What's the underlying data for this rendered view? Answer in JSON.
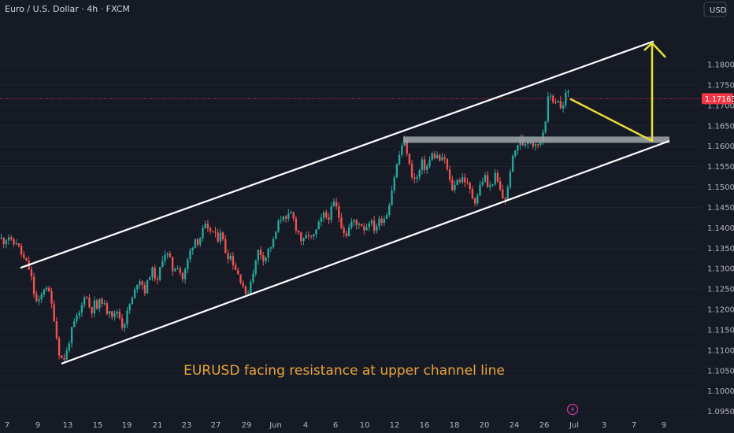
{
  "header": {
    "symbol": "Euro / U.S. Dollar · 4h · FXCM"
  },
  "currency_button": "USD",
  "annotation": "EURUSD facing resistance at upper channel line",
  "colors": {
    "background": "#161a25",
    "up": "#26a69a",
    "down": "#ef5350",
    "channel": "#ffffff",
    "projection": "#e6df3a",
    "zone": "#9aa0a6",
    "current_price": "#f23645",
    "annotation": "#e8a33a"
  },
  "icons": {
    "bolt": "lightning-bolt-icon"
  },
  "chart_data": {
    "type": "candlestick",
    "current_price": 1.17163,
    "current_price_label": "1.17163",
    "ylim": [
      1.0925,
      1.1925
    ],
    "y_ticks": [
      {
        "v": 1.18,
        "label": "1.18000"
      },
      {
        "v": 1.175,
        "label": "1.17500"
      },
      {
        "v": 1.17,
        "label": "1.17000"
      },
      {
        "v": 1.165,
        "label": "1.16500"
      },
      {
        "v": 1.16,
        "label": "1.16000"
      },
      {
        "v": 1.155,
        "label": "1.15500"
      },
      {
        "v": 1.15,
        "label": "1.15000"
      },
      {
        "v": 1.145,
        "label": "1.14500"
      },
      {
        "v": 1.14,
        "label": "1.14000"
      },
      {
        "v": 1.135,
        "label": "1.13500"
      },
      {
        "v": 1.13,
        "label": "1.13000"
      },
      {
        "v": 1.125,
        "label": "1.12500"
      },
      {
        "v": 1.12,
        "label": "1.12000"
      },
      {
        "v": 1.115,
        "label": "1.11500"
      },
      {
        "v": 1.11,
        "label": "1.11000"
      },
      {
        "v": 1.105,
        "label": "1.10500"
      },
      {
        "v": 1.1,
        "label": "1.10000"
      },
      {
        "v": 1.095,
        "label": "1.09500"
      }
    ],
    "x_ticks": [
      "7",
      "9",
      "13",
      "15",
      "19",
      "21",
      "23",
      "27",
      "29",
      "Jun",
      "4",
      "6",
      "10",
      "12",
      "16",
      "18",
      "20",
      "24",
      "26",
      "Jul",
      "3",
      "7",
      "9"
    ],
    "price_path": [
      [
        0,
        1.1375
      ],
      [
        6,
        1.1365
      ],
      [
        10,
        1.1385
      ],
      [
        16,
        1.1355
      ],
      [
        20,
        1.137
      ],
      [
        26,
        1.134
      ],
      [
        30,
        1.1325
      ],
      [
        36,
        1.1305
      ],
      [
        40,
        1.1275
      ],
      [
        44,
        1.123
      ],
      [
        48,
        1.121
      ],
      [
        52,
        1.123
      ],
      [
        58,
        1.1265
      ],
      [
        62,
        1.124
      ],
      [
        68,
        1.119
      ],
      [
        72,
        1.113
      ],
      [
        76,
        1.1085
      ],
      [
        80,
        1.1075
      ],
      [
        84,
        1.109
      ],
      [
        88,
        1.1125
      ],
      [
        92,
        1.1155
      ],
      [
        96,
        1.1175
      ],
      [
        100,
        1.1185
      ],
      [
        104,
        1.121
      ],
      [
        108,
        1.1245
      ],
      [
        112,
        1.1215
      ],
      [
        116,
        1.1195
      ],
      [
        120,
        1.1215
      ],
      [
        124,
        1.12
      ],
      [
        128,
        1.123
      ],
      [
        132,
        1.121
      ],
      [
        136,
        1.1195
      ],
      [
        140,
        1.1205
      ],
      [
        144,
        1.1175
      ],
      [
        148,
        1.12
      ],
      [
        152,
        1.118
      ],
      [
        156,
        1.1155
      ],
      [
        160,
        1.118
      ],
      [
        164,
        1.121
      ],
      [
        168,
        1.1225
      ],
      [
        172,
        1.125
      ],
      [
        176,
        1.128
      ],
      [
        180,
        1.1265
      ],
      [
        184,
        1.1245
      ],
      [
        188,
        1.127
      ],
      [
        192,
        1.13
      ],
      [
        196,
        1.1285
      ],
      [
        200,
        1.1265
      ],
      [
        204,
        1.131
      ],
      [
        208,
        1.134
      ],
      [
        212,
        1.1335
      ],
      [
        216,
        1.132
      ],
      [
        220,
        1.129
      ],
      [
        224,
        1.1315
      ],
      [
        228,
        1.1295
      ],
      [
        232,
        1.1275
      ],
      [
        236,
        1.13
      ],
      [
        240,
        1.1335
      ],
      [
        244,
        1.1355
      ],
      [
        248,
        1.1375
      ],
      [
        252,
        1.1365
      ],
      [
        256,
        1.1385
      ],
      [
        260,
        1.1405
      ],
      [
        264,
        1.139
      ],
      [
        268,
        1.1395
      ],
      [
        272,
        1.1385
      ],
      [
        276,
        1.137
      ],
      [
        280,
        1.1395
      ],
      [
        284,
        1.136
      ],
      [
        288,
        1.133
      ],
      [
        292,
        1.1335
      ],
      [
        296,
        1.1315
      ],
      [
        300,
        1.1295
      ],
      [
        304,
        1.128
      ],
      [
        308,
        1.1265
      ],
      [
        312,
        1.123
      ],
      [
        316,
        1.125
      ],
      [
        320,
        1.1285
      ],
      [
        324,
        1.131
      ],
      [
        328,
        1.1345
      ],
      [
        332,
        1.1335
      ],
      [
        336,
        1.132
      ],
      [
        340,
        1.1345
      ],
      [
        344,
        1.1355
      ],
      [
        348,
        1.137
      ],
      [
        352,
        1.1405
      ],
      [
        356,
        1.142
      ],
      [
        360,
        1.1435
      ],
      [
        364,
        1.141
      ],
      [
        368,
        1.144
      ],
      [
        372,
        1.1425
      ],
      [
        376,
        1.14
      ],
      [
        380,
        1.1385
      ],
      [
        384,
        1.136
      ],
      [
        388,
        1.1375
      ],
      [
        392,
        1.1385
      ],
      [
        396,
        1.137
      ],
      [
        400,
        1.1385
      ],
      [
        404,
        1.1405
      ],
      [
        408,
        1.142
      ],
      [
        412,
        1.1435
      ],
      [
        416,
        1.142
      ],
      [
        420,
        1.144
      ],
      [
        424,
        1.146
      ],
      [
        428,
        1.1445
      ],
      [
        432,
        1.1415
      ],
      [
        436,
        1.1395
      ],
      [
        440,
        1.1385
      ],
      [
        444,
        1.1405
      ],
      [
        448,
        1.142
      ],
      [
        452,
        1.1405
      ],
      [
        456,
        1.1415
      ],
      [
        460,
        1.1405
      ],
      [
        464,
        1.1395
      ],
      [
        468,
        1.142
      ],
      [
        472,
        1.141
      ],
      [
        476,
        1.1395
      ],
      [
        480,
        1.1415
      ],
      [
        484,
        1.142
      ],
      [
        488,
        1.1425
      ],
      [
        492,
        1.144
      ],
      [
        496,
        1.148
      ],
      [
        500,
        1.152
      ],
      [
        504,
        1.1555
      ],
      [
        508,
        1.1585
      ],
      [
        512,
        1.1615
      ],
      [
        516,
        1.1595
      ],
      [
        520,
        1.155
      ],
      [
        524,
        1.1525
      ],
      [
        528,
        1.1515
      ],
      [
        532,
        1.1535
      ],
      [
        536,
        1.156
      ],
      [
        540,
        1.1545
      ],
      [
        544,
        1.1555
      ],
      [
        548,
        1.158
      ],
      [
        552,
        1.1575
      ],
      [
        556,
        1.1575
      ],
      [
        560,
        1.156
      ],
      [
        564,
        1.1575
      ],
      [
        568,
        1.154
      ],
      [
        572,
        1.1505
      ],
      [
        576,
        1.149
      ],
      [
        580,
        1.1525
      ],
      [
        584,
        1.1515
      ],
      [
        588,
        1.1525
      ],
      [
        592,
        1.151
      ],
      [
        596,
        1.1495
      ],
      [
        600,
        1.1475
      ],
      [
        604,
        1.1465
      ],
      [
        608,
        1.1495
      ],
      [
        612,
        1.1515
      ],
      [
        616,
        1.1525
      ],
      [
        620,
        1.1495
      ],
      [
        624,
        1.1505
      ],
      [
        628,
        1.153
      ],
      [
        632,
        1.151
      ],
      [
        636,
        1.1485
      ],
      [
        640,
        1.1465
      ],
      [
        644,
        1.1485
      ],
      [
        648,
        1.1545
      ],
      [
        652,
        1.1575
      ],
      [
        656,
        1.16
      ],
      [
        660,
        1.1615
      ],
      [
        664,
        1.1605
      ],
      [
        668,
        1.161
      ],
      [
        672,
        1.162
      ],
      [
        676,
        1.1605
      ],
      [
        680,
        1.161
      ],
      [
        684,
        1.1595
      ],
      [
        688,
        1.1625
      ],
      [
        692,
        1.166
      ],
      [
        696,
        1.1715
      ],
      [
        700,
        1.1725
      ],
      [
        704,
        1.1705
      ],
      [
        708,
        1.172
      ],
      [
        712,
        1.169
      ],
      [
        716,
        1.17
      ],
      [
        720,
        1.1745
      ],
      [
        724,
        1.1716
      ]
    ],
    "channel": {
      "upper": [
        [
          26,
          1.1302
        ],
        [
          830,
          1.1857
        ]
      ],
      "lower": [
        [
          78,
          1.1067
        ],
        [
          850,
          1.1613
        ]
      ]
    },
    "resistance_zone": {
      "x": [
        512,
        850
      ],
      "y": [
        1.16157,
        1.16237
      ]
    },
    "projection": [
      [
        724,
        1.1716
      ],
      [
        828,
        1.1613
      ],
      [
        828,
        1.1853
      ]
    ],
    "arrow_head": [
      [
        818,
        1.1835
      ],
      [
        828,
        1.1853
      ],
      [
        845,
        1.1818
      ]
    ]
  }
}
